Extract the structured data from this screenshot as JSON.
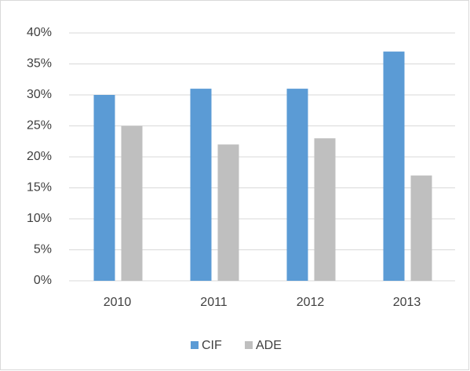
{
  "chart_data": {
    "type": "bar",
    "categories": [
      "2010",
      "2011",
      "2012",
      "2013"
    ],
    "series": [
      {
        "name": "CIF",
        "color": "#5b9bd5",
        "values": [
          30,
          31,
          31,
          37
        ]
      },
      {
        "name": "ADE",
        "color": "#bfbfbf",
        "values": [
          25,
          22,
          23,
          17
        ]
      }
    ],
    "ylim": [
      0,
      40
    ],
    "yticks": [
      {
        "value": 0,
        "label": "0%"
      },
      {
        "value": 5,
        "label": "5%"
      },
      {
        "value": 10,
        "label": "10%"
      },
      {
        "value": 15,
        "label": "15%"
      },
      {
        "value": 20,
        "label": "20%"
      },
      {
        "value": 25,
        "label": "25%"
      },
      {
        "value": 30,
        "label": "30%"
      },
      {
        "value": 35,
        "label": "35%"
      },
      {
        "value": 40,
        "label": "40%"
      }
    ],
    "grid": true,
    "legend": "bottom"
  }
}
